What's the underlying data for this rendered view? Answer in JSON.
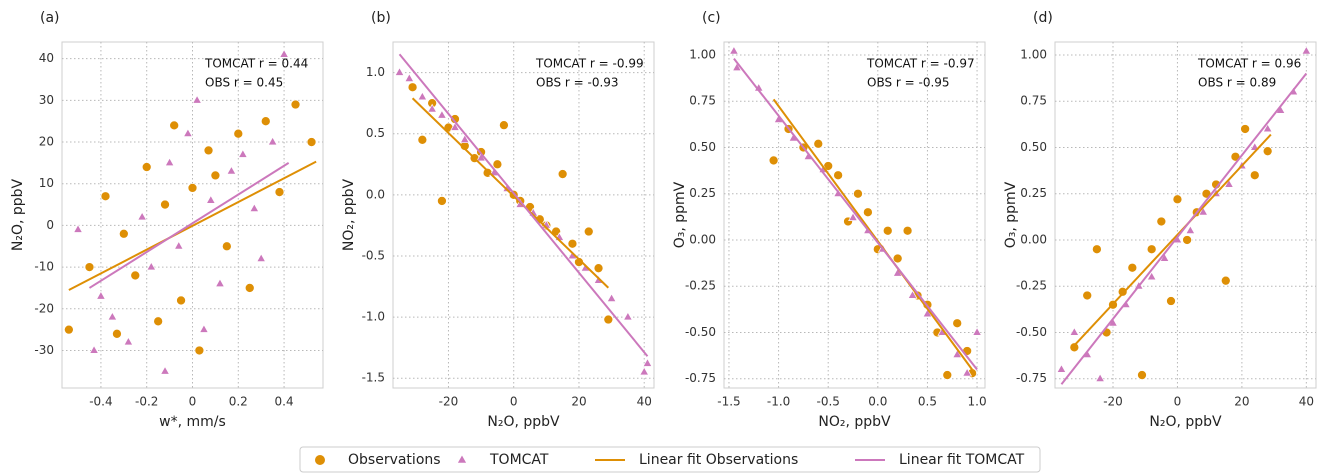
{
  "chart_data": [
    {
      "type": "scatter",
      "panel_label": "(a)",
      "xlabel": "w*, mm/s",
      "ylabel": "N₂O, ppbV",
      "annotations": [
        "TOMCAT r = 0.44",
        "OBS r = 0.45"
      ],
      "xlim": [
        -0.57,
        0.57
      ],
      "xticks": [
        -0.4,
        -0.2,
        0.0,
        0.2,
        0.4
      ],
      "ylim": [
        -39,
        44
      ],
      "yticks": [
        -30,
        -20,
        -10,
        0,
        10,
        20,
        30,
        40
      ],
      "grid": true,
      "series": [
        {
          "name": "Observations",
          "type": "scatter",
          "marker": "circle",
          "color": "#de8f05",
          "x": [
            -0.54,
            -0.45,
            -0.38,
            -0.33,
            -0.3,
            -0.25,
            -0.2,
            -0.15,
            -0.12,
            -0.08,
            -0.05,
            0.0,
            0.03,
            0.07,
            0.1,
            0.15,
            0.2,
            0.25,
            0.32,
            0.38,
            0.45,
            0.52
          ],
          "values": [
            -25,
            -10,
            7,
            -26,
            -2,
            -12,
            14,
            -23,
            5,
            24,
            -18,
            9,
            -30,
            18,
            12,
            -5,
            22,
            -15,
            25,
            8,
            29,
            20
          ]
        },
        {
          "name": "TOMCAT",
          "type": "scatter",
          "marker": "triangle",
          "color": "#cc78bc",
          "x": [
            -0.5,
            -0.43,
            -0.4,
            -0.35,
            -0.28,
            -0.22,
            -0.18,
            -0.12,
            -0.1,
            -0.06,
            -0.02,
            0.02,
            0.05,
            0.08,
            0.12,
            0.17,
            0.22,
            0.27,
            0.3,
            0.35,
            0.4
          ],
          "values": [
            -1,
            -30,
            -17,
            -22,
            -28,
            2,
            -10,
            -35,
            15,
            -5,
            22,
            30,
            -25,
            6,
            -14,
            13,
            17,
            4,
            -8,
            20,
            41
          ]
        },
        {
          "name": "Linear fit Observations",
          "type": "line",
          "color": "#de8f05",
          "x": [
            -0.54,
            0.54
          ],
          "values": [
            -15.5,
            15.3
          ]
        },
        {
          "name": "Linear fit TOMCAT",
          "type": "line",
          "color": "#cc78bc",
          "x": [
            -0.45,
            0.42
          ],
          "values": [
            -15,
            15
          ]
        }
      ]
    },
    {
      "type": "scatter",
      "panel_label": "(b)",
      "xlabel": "N₂O, ppbV",
      "ylabel": "NO₂, ppbV",
      "annotations": [
        "TOMCAT r = -0.99",
        "OBS r = -0.93"
      ],
      "xlim": [
        -37,
        43
      ],
      "xticks": [
        -20,
        0,
        20,
        40
      ],
      "ylim": [
        -1.58,
        1.25
      ],
      "yticks": [
        -1.5,
        {
          "value": -1,
          "label": "-1.0"
        },
        -0.5,
        {
          "value": 0,
          "label": "0.0"
        },
        0.5,
        {
          "value": 1,
          "label": "1.0"
        }
      ],
      "grid": true,
      "series": [
        {
          "type": "scatter",
          "marker": "circle",
          "color": "#de8f05",
          "x": [
            -31,
            -28,
            -25,
            -22,
            -20,
            -18,
            -15,
            -12,
            -10,
            -8,
            -5,
            -3,
            0,
            2,
            5,
            8,
            10,
            13,
            15,
            18,
            20,
            23,
            26,
            29
          ],
          "values": [
            0.88,
            0.45,
            0.75,
            -0.05,
            0.55,
            0.62,
            0.4,
            0.3,
            0.35,
            0.18,
            0.25,
            0.57,
            0.0,
            -0.05,
            -0.1,
            -0.2,
            -0.25,
            -0.3,
            0.17,
            -0.4,
            -0.55,
            -0.3,
            -0.6,
            -1.02
          ]
        },
        {
          "type": "scatter",
          "marker": "triangle",
          "color": "#cc78bc",
          "x": [
            -35,
            -32,
            -28,
            -25,
            -22,
            -18,
            -15,
            -10,
            -6,
            -2,
            2,
            6,
            10,
            14,
            18,
            22,
            26,
            30,
            35,
            40,
            41
          ],
          "values": [
            1.0,
            0.95,
            0.8,
            0.7,
            0.65,
            0.55,
            0.45,
            0.3,
            0.18,
            0.05,
            -0.08,
            -0.15,
            -0.25,
            -0.35,
            -0.5,
            -0.6,
            -0.7,
            -0.85,
            -1.0,
            -1.45,
            -1.38
          ]
        },
        {
          "type": "line",
          "color": "#de8f05",
          "x": [
            -31,
            29
          ],
          "values": [
            0.79,
            -0.76
          ]
        },
        {
          "type": "line",
          "color": "#cc78bc",
          "x": [
            -35,
            41
          ],
          "values": [
            1.15,
            -1.32
          ]
        }
      ]
    },
    {
      "type": "scatter",
      "panel_label": "(c)",
      "xlabel": "NO₂, ppbV",
      "ylabel": "O₃, ppmV",
      "annotations": [
        "TOMCAT r = -0.97",
        "OBS r = -0.95"
      ],
      "xlim": [
        -1.55,
        1.08
      ],
      "xticks": [
        -1.5,
        {
          "value": -1,
          "label": "-1.0"
        },
        -0.5,
        {
          "value": 0,
          "label": "0.0"
        },
        0.5,
        {
          "value": 1,
          "label": "1.0"
        }
      ],
      "ylim": [
        -0.8,
        1.07
      ],
      "yticks": [
        -0.75,
        {
          "value": -0.5,
          "label": "-0.50"
        },
        -0.25,
        {
          "value": 0,
          "label": "0.00"
        },
        0.25,
        {
          "value": 0.5,
          "label": "0.50"
        },
        0.75,
        {
          "value": 1,
          "label": "1.00"
        }
      ],
      "grid": true,
      "series": [
        {
          "type": "scatter",
          "marker": "circle",
          "color": "#de8f05",
          "x": [
            -1.05,
            -0.9,
            -0.75,
            -0.6,
            -0.5,
            -0.4,
            -0.3,
            -0.2,
            -0.1,
            0,
            0.1,
            0.2,
            0.3,
            0.4,
            0.5,
            0.6,
            0.7,
            0.8,
            0.9,
            0.95
          ],
          "values": [
            0.43,
            0.6,
            0.5,
            0.52,
            0.4,
            0.35,
            0.1,
            0.25,
            0.15,
            -0.05,
            0.05,
            -0.1,
            0.05,
            -0.3,
            -0.35,
            -0.5,
            -0.73,
            -0.45,
            -0.6,
            -0.72
          ]
        },
        {
          "type": "scatter",
          "marker": "triangle",
          "color": "#cc78bc",
          "x": [
            -1.45,
            -1.42,
            -1.2,
            -1.0,
            -0.85,
            -0.7,
            -0.55,
            -0.4,
            -0.25,
            -0.1,
            0.05,
            0.2,
            0.35,
            0.5,
            0.65,
            0.8,
            0.9,
            1.0
          ],
          "values": [
            1.02,
            0.93,
            0.82,
            0.65,
            0.55,
            0.45,
            0.38,
            0.25,
            0.12,
            0.05,
            -0.05,
            -0.18,
            -0.3,
            -0.4,
            -0.5,
            -0.62,
            -0.72,
            -0.5
          ]
        },
        {
          "type": "line",
          "color": "#de8f05",
          "x": [
            -1.05,
            0.95
          ],
          "values": [
            0.76,
            -0.7
          ]
        },
        {
          "type": "line",
          "color": "#cc78bc",
          "x": [
            -1.45,
            1.0
          ],
          "values": [
            0.98,
            -0.7
          ]
        }
      ]
    },
    {
      "type": "scatter",
      "panel_label": "(d)",
      "xlabel": "N₂O, ppbV",
      "ylabel": "O₃, ppmV",
      "annotations": [
        "TOMCAT r = 0.96",
        "OBS r = 0.89"
      ],
      "xlim": [
        -38,
        43
      ],
      "xticks": [
        -20,
        0,
        20,
        40
      ],
      "ylim": [
        -0.8,
        1.07
      ],
      "yticks": [
        -0.75,
        {
          "value": -0.5,
          "label": "-0.50"
        },
        -0.25,
        {
          "value": 0,
          "label": "0.00"
        },
        0.25,
        {
          "value": 0.5,
          "label": "0.50"
        },
        0.75,
        {
          "value": 1,
          "label": "1.00"
        }
      ],
      "grid": true,
      "series": [
        {
          "type": "scatter",
          "marker": "circle",
          "color": "#de8f05",
          "x": [
            -32,
            -28,
            -25,
            -22,
            -20,
            -17,
            -14,
            -11,
            -8,
            -5,
            -2,
            0,
            3,
            6,
            9,
            12,
            15,
            18,
            21,
            24,
            28
          ],
          "values": [
            -0.58,
            -0.3,
            -0.05,
            -0.5,
            -0.35,
            -0.28,
            -0.15,
            -0.73,
            -0.05,
            0.1,
            -0.33,
            0.22,
            0.0,
            0.15,
            0.25,
            0.3,
            -0.22,
            0.45,
            0.6,
            0.35,
            0.48
          ]
        },
        {
          "type": "scatter",
          "marker": "triangle",
          "color": "#cc78bc",
          "x": [
            -36,
            -32,
            -28,
            -24,
            -20,
            -16,
            -12,
            -8,
            -4,
            0,
            4,
            8,
            12,
            16,
            20,
            24,
            28,
            32,
            36,
            40
          ],
          "values": [
            -0.7,
            -0.5,
            -0.62,
            -0.75,
            -0.45,
            -0.35,
            -0.25,
            -0.2,
            -0.1,
            0.0,
            0.05,
            0.15,
            0.25,
            0.3,
            0.4,
            0.5,
            0.6,
            0.7,
            0.8,
            1.02
          ]
        },
        {
          "type": "line",
          "color": "#de8f05",
          "x": [
            -32,
            29
          ],
          "values": [
            -0.57,
            0.57
          ]
        },
        {
          "type": "line",
          "color": "#cc78bc",
          "x": [
            -36,
            40
          ],
          "values": [
            -0.78,
            0.9
          ]
        }
      ]
    }
  ]
}
